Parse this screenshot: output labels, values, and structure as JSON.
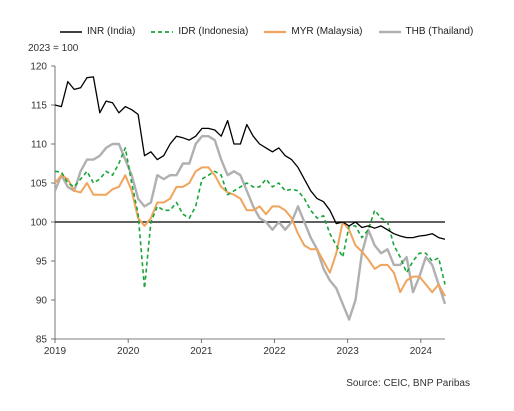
{
  "legend": [
    {
      "label": "INR (India)",
      "color": "#000000",
      "dash": false
    },
    {
      "label": "IDR (Indonesia)",
      "color": "#1aa53a",
      "dash": true
    },
    {
      "label": "MYR (Malaysia)",
      "color": "#f0a45c",
      "dash": false
    },
    {
      "label": "THB (Thailand)",
      "color": "#b0b0b0",
      "dash": false
    }
  ],
  "unit_note": "2023 = 100",
  "source": "Source: CEIC, BNP Paribas",
  "chart_data": {
    "type": "line",
    "ylim": [
      85,
      120
    ],
    "yticks": [
      85,
      90,
      95,
      100,
      105,
      110,
      115,
      120
    ],
    "xlim": [
      2019.0,
      2024.33
    ],
    "xticks": [
      2019,
      2020,
      2021,
      2022,
      2023,
      2024
    ],
    "xtick_labels": [
      "2019",
      "2020",
      "2021",
      "2022",
      "2023",
      "2024"
    ],
    "reference_line": 100,
    "grid": false,
    "legend_position": "top",
    "series": [
      {
        "name": "INR (India)",
        "color": "#000000",
        "dash": false,
        "values": [
          115,
          114.8,
          118,
          117,
          117.2,
          118.5,
          118.6,
          114,
          115.5,
          115.3,
          114,
          114.8,
          114.4,
          113.8,
          108.5,
          109,
          108,
          108.5,
          110,
          111,
          110.8,
          110.5,
          111,
          112,
          112,
          111.8,
          111,
          113,
          110,
          110,
          112.5,
          111,
          110,
          109.5,
          109,
          109.5,
          108.5,
          108,
          107,
          105.5,
          104,
          103,
          102.6,
          101.5,
          99.8,
          100,
          99.5,
          100,
          99.3,
          99.5,
          99.2,
          99.5,
          99,
          98.5,
          98.2,
          98,
          98,
          98.2,
          98.3,
          98.5,
          98,
          97.8
        ]
      },
      {
        "name": "IDR (Indonesia)",
        "color": "#1aa53a",
        "dash": true,
        "values": [
          106.5,
          106.4,
          105,
          104.5,
          105.5,
          106.5,
          105,
          105.5,
          106.5,
          106,
          107.5,
          109.5,
          105,
          101,
          91.5,
          100,
          102,
          101.5,
          101.5,
          102.5,
          101,
          100.5,
          102,
          105.5,
          106,
          106.5,
          106,
          103.5,
          104,
          104.5,
          105,
          104.5,
          104.5,
          105.5,
          104.5,
          105,
          104,
          104.2,
          104,
          103,
          101.5,
          100.5,
          100.8,
          98.5,
          97,
          95.5,
          99.5,
          99.5,
          98,
          99,
          101.5,
          100.5,
          100,
          97,
          95.5,
          93.5,
          95,
          96,
          96,
          95,
          95.4,
          92
        ]
      },
      {
        "name": "MYR (Malaysia)",
        "color": "#f0a45c",
        "dash": false,
        "values": [
          105,
          106,
          105.5,
          104,
          103.8,
          105,
          103.5,
          103.5,
          103.5,
          104.2,
          104.5,
          106,
          104,
          100.5,
          99.5,
          100.5,
          102.5,
          102.5,
          103,
          104.5,
          104.5,
          105,
          106.5,
          107,
          107,
          106,
          104.5,
          103.8,
          103.5,
          103,
          101.5,
          101.5,
          102,
          101,
          102,
          102,
          101.5,
          100.5,
          98.5,
          97,
          96.5,
          96.5,
          95,
          93.5,
          96,
          100,
          99,
          97,
          96.2,
          95.2,
          94,
          94.5,
          94.5,
          93.5,
          91,
          92.5,
          93,
          93,
          92,
          91,
          92,
          90.5
        ]
      },
      {
        "name": "THB (Thailand)",
        "color": "#b0b0b0",
        "dash": false,
        "values": [
          104,
          106,
          104.5,
          104,
          106.5,
          108,
          108,
          108.5,
          109.5,
          110,
          110,
          108,
          106,
          103,
          102,
          102.5,
          106,
          105.5,
          106,
          106,
          107.5,
          107.5,
          110,
          111,
          111,
          110.5,
          108,
          106,
          106.5,
          106,
          104,
          102,
          100.5,
          100,
          99,
          100,
          99,
          100,
          102,
          100,
          98,
          96.5,
          94,
          92.5,
          91.5,
          89.5,
          87.5,
          90,
          96,
          99,
          97,
          96,
          96.5,
          94.5,
          94.5,
          95.5,
          91,
          93,
          95.5,
          94.5,
          92,
          89.5
        ]
      }
    ]
  }
}
